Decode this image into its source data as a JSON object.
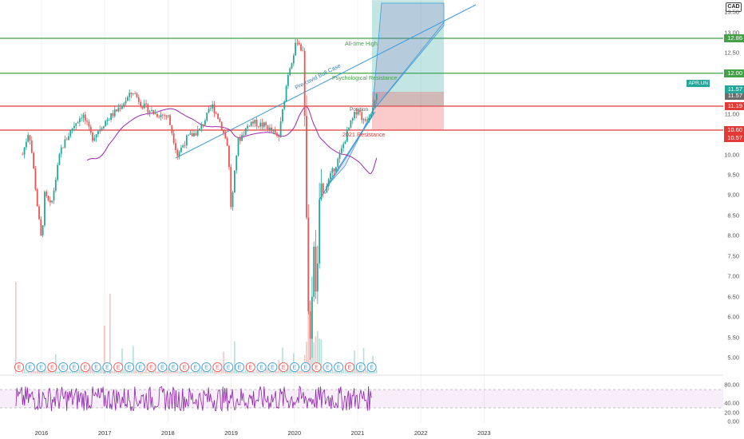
{
  "currency_label": "CAD",
  "ticker_tag": "APR.UN",
  "colors": {
    "up": "#26a69a",
    "down": "#ef5350",
    "sma": "#9c27b0",
    "support": "#e53935",
    "resistance": "#43a047",
    "trend": "#3b9ad9",
    "rsi": "#8e24aa"
  },
  "y_ticks": [
    "13.50",
    "13.00",
    "12.50",
    "12.00",
    "11.50",
    "11.00",
    "10.50",
    "10.00",
    "9.50",
    "9.00",
    "8.50",
    "8.00",
    "7.50",
    "7.00",
    "6.50",
    "6.00",
    "5.50",
    "5.00"
  ],
  "rsi_ticks": [
    "80.00",
    "40.00",
    "20.00",
    "0.00"
  ],
  "x_ticks": [
    "2016",
    "2017",
    "2018",
    "2019",
    "2020",
    "2021",
    "2022",
    "2023"
  ],
  "price_labels": [
    {
      "value": "12.86",
      "kind": "resistance"
    },
    {
      "value": "12.00",
      "kind": "resistance"
    },
    {
      "value": "11.57",
      "kind": "ticker"
    },
    {
      "value": "11.57",
      "kind": "gray"
    },
    {
      "value": "11.19",
      "kind": "support"
    },
    {
      "value": "10.60",
      "kind": "support"
    },
    {
      "value": "10.57",
      "kind": "support"
    }
  ],
  "annotations": {
    "all_time_high": "All-time High",
    "psych_resistance": "Psychological Resistance",
    "bull_case": "Pre-covid Bull Case",
    "resistance_2021": "2021 Resistance",
    "position": "Position"
  },
  "earnings_marker": "E",
  "chart_data": {
    "type": "candlestick",
    "ylim": [
      4.6,
      13.8
    ],
    "rsi_ylim": [
      0,
      100
    ],
    "horizontal_levels": [
      12.86,
      12.0,
      11.19,
      10.6
    ],
    "position": {
      "entry": 11.19,
      "stop": 10.6,
      "target": 13.8
    },
    "price_path": [
      {
        "x": 2015.7,
        "y": 10.0
      },
      {
        "x": 2015.8,
        "y": 10.6
      },
      {
        "x": 2015.85,
        "y": 10.0
      },
      {
        "x": 2015.95,
        "y": 8.5
      },
      {
        "x": 2016.0,
        "y": 7.85
      },
      {
        "x": 2016.05,
        "y": 9.0
      },
      {
        "x": 2016.15,
        "y": 8.7
      },
      {
        "x": 2016.3,
        "y": 10.1
      },
      {
        "x": 2016.5,
        "y": 10.7
      },
      {
        "x": 2016.65,
        "y": 11.0
      },
      {
        "x": 2016.8,
        "y": 10.4
      },
      {
        "x": 2017.0,
        "y": 10.8
      },
      {
        "x": 2017.2,
        "y": 11.1
      },
      {
        "x": 2017.45,
        "y": 11.55
      },
      {
        "x": 2017.6,
        "y": 11.2
      },
      {
        "x": 2017.8,
        "y": 11.0
      },
      {
        "x": 2018.0,
        "y": 10.95
      },
      {
        "x": 2018.15,
        "y": 10.0
      },
      {
        "x": 2018.3,
        "y": 10.4
      },
      {
        "x": 2018.5,
        "y": 10.6
      },
      {
        "x": 2018.7,
        "y": 11.2
      },
      {
        "x": 2018.8,
        "y": 10.9
      },
      {
        "x": 2018.95,
        "y": 10.2
      },
      {
        "x": 2019.0,
        "y": 8.6
      },
      {
        "x": 2019.1,
        "y": 10.3
      },
      {
        "x": 2019.3,
        "y": 10.8
      },
      {
        "x": 2019.55,
        "y": 10.7
      },
      {
        "x": 2019.75,
        "y": 10.4
      },
      {
        "x": 2019.9,
        "y": 12.0
      },
      {
        "x": 2020.05,
        "y": 12.85
      },
      {
        "x": 2020.15,
        "y": 12.4
      },
      {
        "x": 2020.2,
        "y": 7.5
      },
      {
        "x": 2020.25,
        "y": 5.25
      },
      {
        "x": 2020.3,
        "y": 8.0
      },
      {
        "x": 2020.35,
        "y": 6.6
      },
      {
        "x": 2020.4,
        "y": 8.8
      },
      {
        "x": 2020.55,
        "y": 9.4
      },
      {
        "x": 2020.7,
        "y": 9.9
      },
      {
        "x": 2020.85,
        "y": 10.6
      },
      {
        "x": 2021.0,
        "y": 11.15
      },
      {
        "x": 2021.1,
        "y": 10.8
      },
      {
        "x": 2021.2,
        "y": 11.0
      },
      {
        "x": 2021.3,
        "y": 11.57
      }
    ]
  }
}
